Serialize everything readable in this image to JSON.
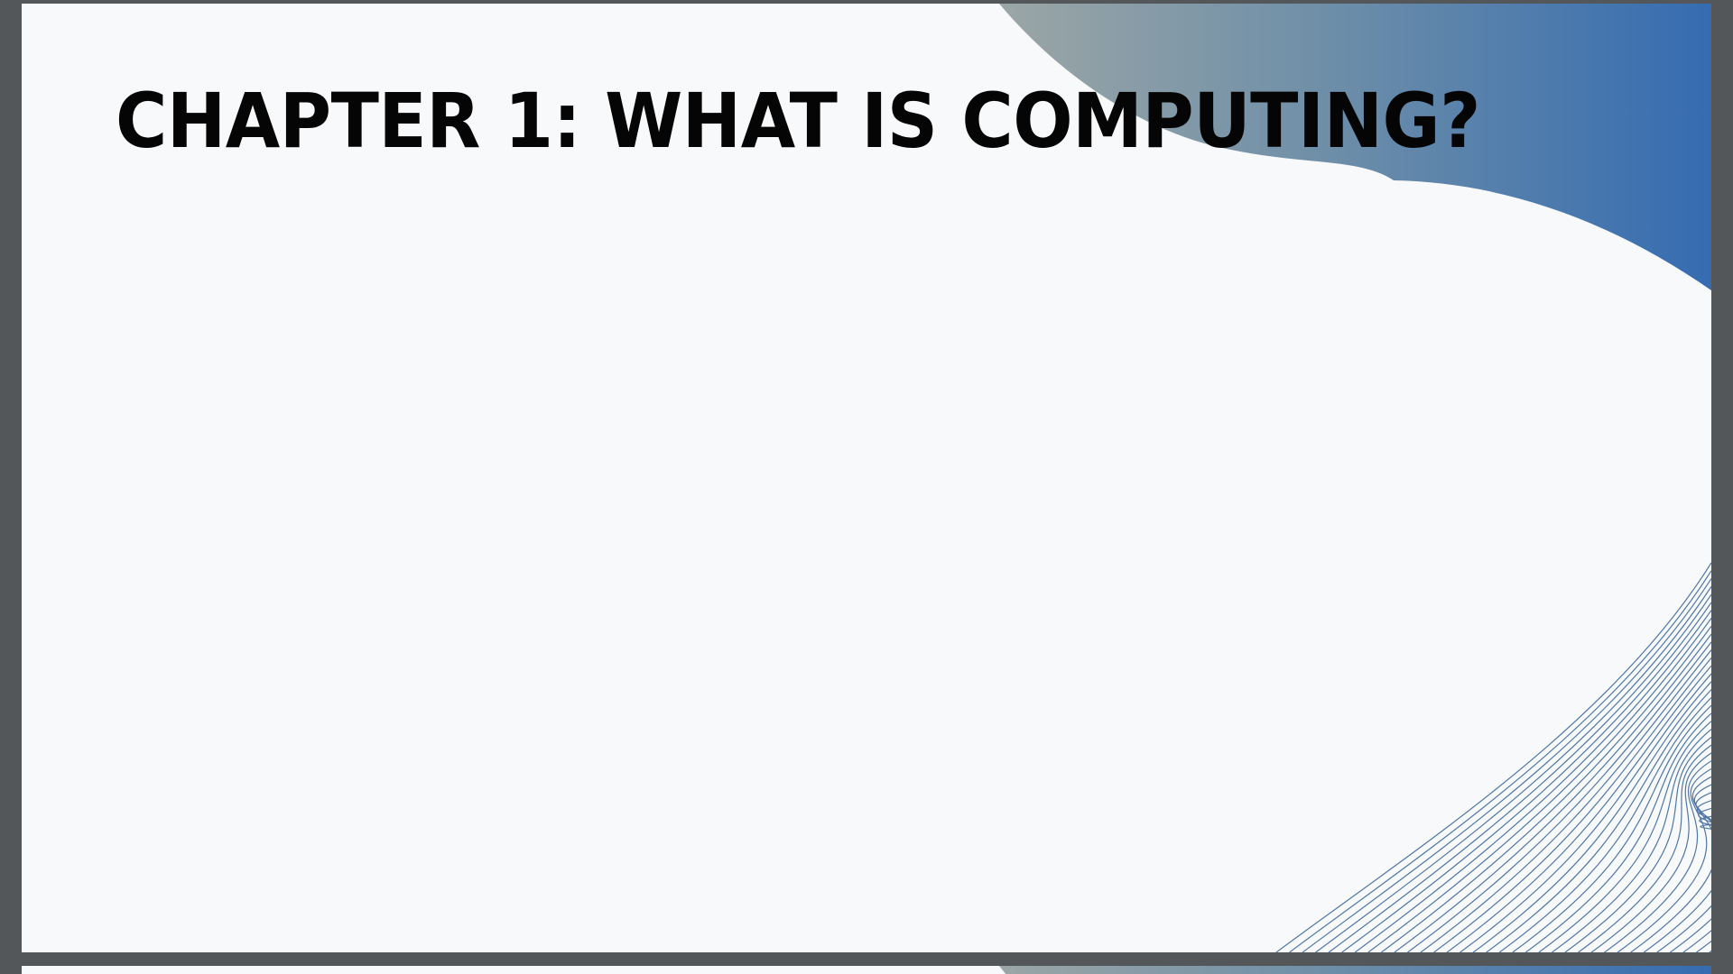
{
  "slides": [
    {
      "title": "CHAPTER 1: WHAT IS COMPUTING?"
    }
  ],
  "theme": {
    "gradient_start": "#9aa7a8",
    "gradient_end": "#356db0",
    "line_color": "#5078a8",
    "slide_background": "#f8f9fa",
    "viewer_background": "#54575a",
    "title_color": "#050505"
  },
  "icons": {
    "top_right_wave": "gradient-wave-shape",
    "bottom_right_lines": "line-fan-pattern"
  }
}
